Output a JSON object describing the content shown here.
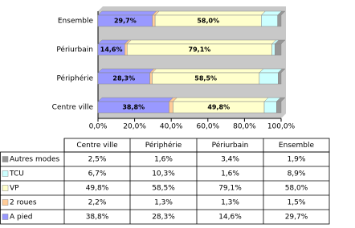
{
  "chart_data": {
    "type": "stacked_barh",
    "categories": [
      "Centre ville",
      "Périphérie",
      "Périurbain",
      "Ensemble"
    ],
    "series": [
      {
        "name": "Autres modes",
        "color": "#969696",
        "values": [
          2.5,
          1.6,
          3.4,
          1.9
        ],
        "value_labels": [
          "2,5%",
          "1,6%",
          "3,4%",
          "1,9%"
        ],
        "data_labels": false
      },
      {
        "name": "TCU",
        "color": "#ccffff",
        "values": [
          6.7,
          10.3,
          1.6,
          8.9
        ],
        "value_labels": [
          "6,7%",
          "10,3%",
          "1,6%",
          "8,9%"
        ],
        "data_labels": false
      },
      {
        "name": "VP",
        "color": "#ffffcc",
        "values": [
          49.8,
          58.5,
          79.1,
          58.0
        ],
        "value_labels": [
          "49,8%",
          "58,5%",
          "79,1%",
          "58,0%"
        ],
        "data_labels": true
      },
      {
        "name": "2 roues",
        "color": "#ffcc99",
        "values": [
          2.2,
          1.3,
          1.3,
          1.5
        ],
        "value_labels": [
          "2,2%",
          "1,3%",
          "1,3%",
          "1,5%"
        ],
        "data_labels": false
      },
      {
        "name": "A pied",
        "color": "#9999ff",
        "values": [
          38.8,
          28.3,
          14.6,
          29.7
        ],
        "value_labels": [
          "38,8%",
          "28,3%",
          "14,6%",
          "29,7%"
        ],
        "data_labels": true
      }
    ],
    "xlim": [
      0,
      100
    ],
    "xticks": [
      {
        "value": 0,
        "label": "0,0%"
      },
      {
        "value": 20,
        "label": "20,0%"
      },
      {
        "value": 40,
        "label": "40,0%"
      },
      {
        "value": 60,
        "label": "60,0%"
      },
      {
        "value": 80,
        "label": "80,0%"
      },
      {
        "value": 100,
        "label": "100,0%"
      }
    ]
  }
}
